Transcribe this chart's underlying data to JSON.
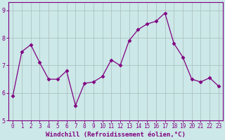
{
  "x": [
    0,
    1,
    2,
    3,
    4,
    5,
    6,
    7,
    8,
    9,
    10,
    11,
    12,
    13,
    14,
    15,
    16,
    17,
    18,
    19,
    20,
    21,
    22,
    23
  ],
  "y": [
    5.9,
    7.5,
    7.75,
    7.1,
    6.5,
    6.5,
    6.8,
    5.55,
    6.35,
    6.4,
    6.6,
    7.2,
    7.0,
    7.9,
    8.3,
    8.5,
    8.6,
    8.9,
    7.8,
    7.3,
    6.5,
    6.4,
    6.55,
    6.25
  ],
  "line_color": "#800080",
  "marker": "D",
  "marker_size": 2.5,
  "bg_color": "#cce8e8",
  "grid_color": "#aabbbb",
  "xlabel": "Windchill (Refroidissement éolien,°C)",
  "xlabel_color": "#800080",
  "tick_color": "#800080",
  "spine_color": "#800080",
  "ylim": [
    5.0,
    9.3
  ],
  "yticks": [
    5,
    6,
    7,
    8,
    9
  ],
  "xticks": [
    0,
    1,
    2,
    3,
    4,
    5,
    6,
    7,
    8,
    9,
    10,
    11,
    12,
    13,
    14,
    15,
    16,
    17,
    18,
    19,
    20,
    21,
    22,
    23
  ],
  "xlim": [
    -0.5,
    23.5
  ],
  "tick_fontsize": 5.5,
  "xlabel_fontsize": 6.5
}
